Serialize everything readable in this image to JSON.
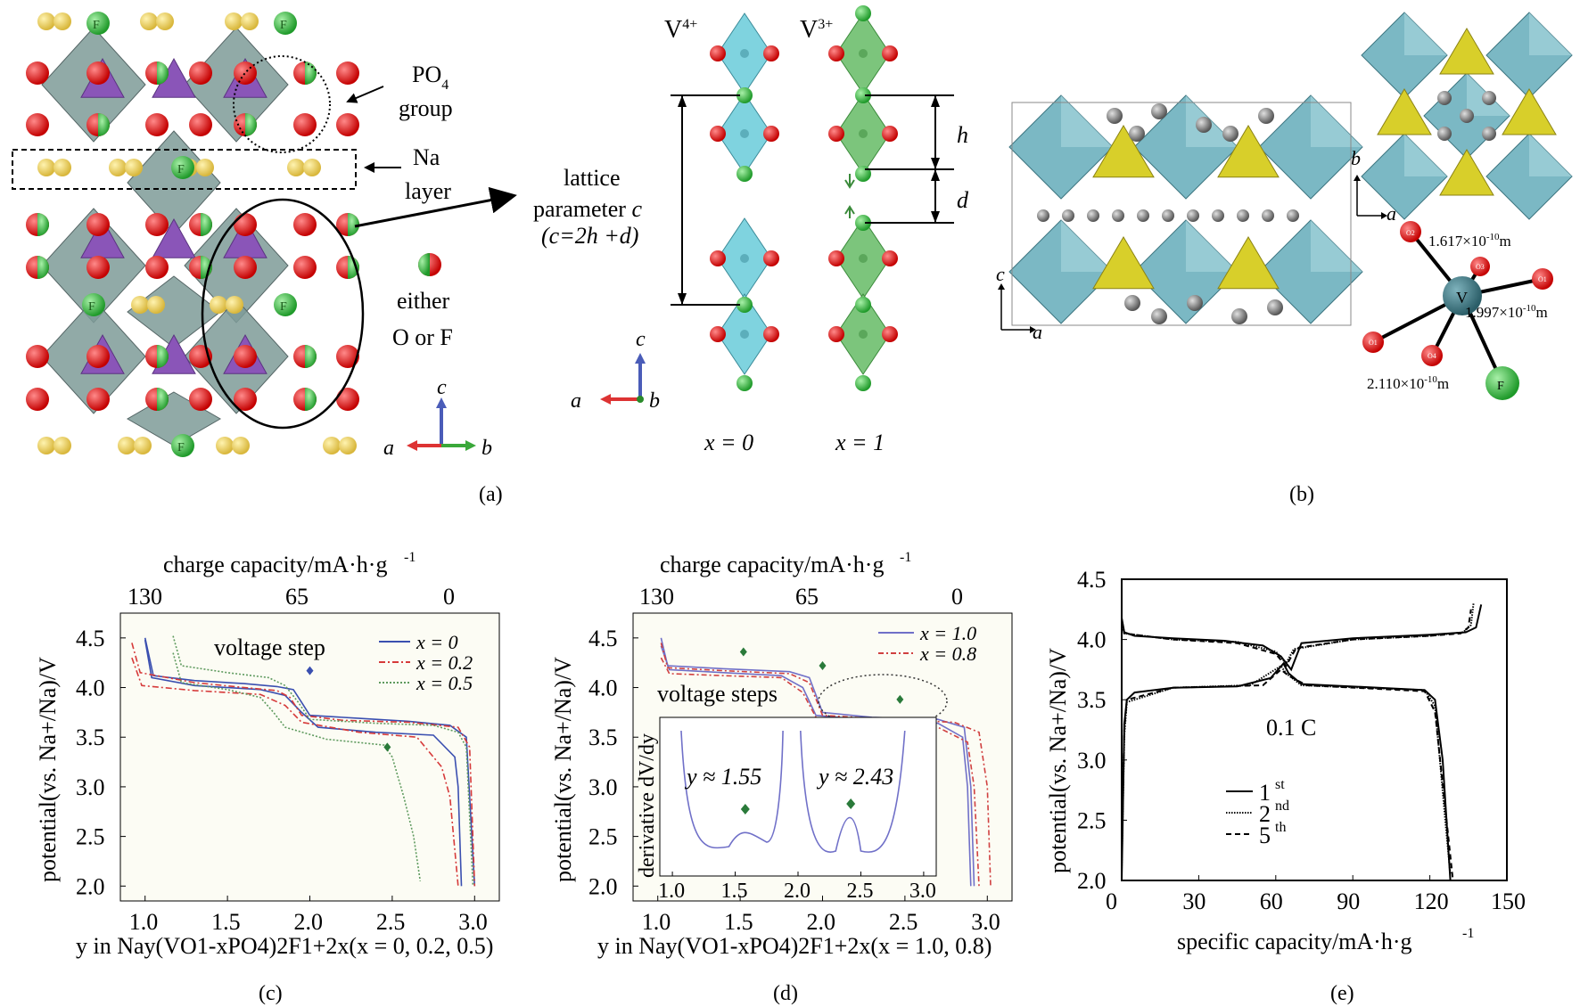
{
  "panel_a": {
    "label": "(a)",
    "po4_group": "group",
    "po4_po": "PO",
    "po4_sub": "4",
    "na_layer_1": "Na",
    "na_layer_2": "layer",
    "either": "either",
    "o_or_f": "O or F",
    "lattice_1": "lattice",
    "lattice_2_prefix": "parameter ",
    "lattice_2_var": "c",
    "lattice_3": "(c=2h +d)",
    "v4": "V",
    "v4_sup": "4+",
    "v3": "V",
    "v3_sup": "3+",
    "h": "h",
    "d": "d",
    "x0": "x = 0",
    "x1": "x = 1",
    "axis_a": "a",
    "axis_b": "b",
    "axis_c": "c",
    "atom_f": "F"
  },
  "panel_b": {
    "label": "(b)",
    "axis_a": "a",
    "axis_b": "b",
    "axis_c": "c",
    "bond1": "1.617×10",
    "bond1_exp": "-10",
    "bond1_unit": "m",
    "bond2": "1.997×10",
    "bond2_exp": "-10",
    "bond2_unit": "m",
    "bond3": "2.110×10",
    "bond3_exp": "-10",
    "bond3_unit": "m",
    "center": "V",
    "f": "F",
    "o_labels": [
      "O2",
      "O3",
      "O1",
      "O1",
      "O4"
    ]
  },
  "chart_data": [
    {
      "id": "c",
      "label": "(c)",
      "type": "line",
      "title_top": "charge capacity/mA·h·g",
      "title_top_sup": "-1",
      "top_ticks": [
        "130",
        "65",
        "0"
      ],
      "ylabel": "potential(vs. Na+/Na)/V",
      "xlabel": "y in Nay(VO1-xPO4)2F1+2x(x = 0, 0.2, 0.5)",
      "xlim": [
        0.85,
        3.15
      ],
      "ylim": [
        1.85,
        4.75
      ],
      "xticks": [
        "1.0",
        "1.5",
        "2.0",
        "2.5",
        "3.0"
      ],
      "yticks": [
        "2.0",
        "2.5",
        "3.0",
        "3.5",
        "4.0",
        "4.5"
      ],
      "annotation": "voltage step",
      "legend": [
        "x = 0",
        "x = 0.2",
        "x = 0.5"
      ],
      "series": [
        {
          "name": "x = 0 charge",
          "color": "#3a4fb0",
          "dash": "",
          "points": [
            [
              1.0,
              4.5
            ],
            [
              1.05,
              4.12
            ],
            [
              1.3,
              4.07
            ],
            [
              1.6,
              4.04
            ],
            [
              1.8,
              4.01
            ],
            [
              1.9,
              3.98
            ],
            [
              1.95,
              3.85
            ],
            [
              2.0,
              3.72
            ],
            [
              2.3,
              3.69
            ],
            [
              2.6,
              3.66
            ],
            [
              2.85,
              3.62
            ],
            [
              2.95,
              3.5
            ],
            [
              3.0,
              2.0
            ]
          ]
        },
        {
          "name": "x = 0 discharge",
          "color": "#3a4fb0",
          "dash": "",
          "points": [
            [
              1.0,
              4.48
            ],
            [
              1.04,
              4.1
            ],
            [
              1.3,
              4.02
            ],
            [
              1.7,
              3.98
            ],
            [
              1.85,
              3.92
            ],
            [
              1.95,
              3.75
            ],
            [
              2.05,
              3.6
            ],
            [
              2.4,
              3.55
            ],
            [
              2.75,
              3.52
            ],
            [
              2.88,
              3.3
            ],
            [
              2.9,
              3.0
            ],
            [
              2.92,
              2.0
            ]
          ]
        },
        {
          "name": "x = 0.2 charge",
          "color": "#d63a3a",
          "dash": "7,3,2,3",
          "points": [
            [
              0.92,
              4.45
            ],
            [
              0.97,
              4.15
            ],
            [
              1.3,
              4.05
            ],
            [
              1.6,
              4.0
            ],
            [
              1.8,
              3.97
            ],
            [
              1.88,
              3.9
            ],
            [
              1.95,
              3.72
            ],
            [
              2.2,
              3.67
            ],
            [
              2.6,
              3.65
            ],
            [
              2.9,
              3.6
            ],
            [
              2.97,
              3.4
            ],
            [
              3.0,
              2.0
            ]
          ]
        },
        {
          "name": "x = 0.2 discharge",
          "color": "#d63a3a",
          "dash": "7,3,2,3",
          "points": [
            [
              0.92,
              4.3
            ],
            [
              0.98,
              4.02
            ],
            [
              1.3,
              3.97
            ],
            [
              1.7,
              3.93
            ],
            [
              1.85,
              3.82
            ],
            [
              1.95,
              3.65
            ],
            [
              2.3,
              3.55
            ],
            [
              2.65,
              3.5
            ],
            [
              2.8,
              3.2
            ],
            [
              2.85,
              2.9
            ],
            [
              2.9,
              2.0
            ]
          ]
        },
        {
          "name": "x = 0.5 charge",
          "color": "#5e9a5e",
          "dash": "2,2",
          "points": [
            [
              1.17,
              4.52
            ],
            [
              1.22,
              4.22
            ],
            [
              1.5,
              4.15
            ],
            [
              1.75,
              4.1
            ],
            [
              1.85,
              4.02
            ],
            [
              1.93,
              3.85
            ],
            [
              2.0,
              3.68
            ],
            [
              2.4,
              3.64
            ],
            [
              2.75,
              3.62
            ],
            [
              2.9,
              3.55
            ],
            [
              2.95,
              3.4
            ],
            [
              2.99,
              2.0
            ]
          ]
        },
        {
          "name": "x = 0.5 discharge",
          "color": "#5e9a5e",
          "dash": "2,2",
          "points": [
            [
              1.17,
              4.35
            ],
            [
              1.22,
              4.05
            ],
            [
              1.5,
              3.98
            ],
            [
              1.7,
              3.9
            ],
            [
              1.78,
              3.75
            ],
            [
              1.85,
              3.6
            ],
            [
              2.1,
              3.48
            ],
            [
              2.45,
              3.42
            ],
            [
              2.5,
              3.3
            ],
            [
              2.57,
              2.9
            ],
            [
              2.63,
              2.5
            ],
            [
              2.67,
              2.05
            ]
          ]
        }
      ],
      "markers": [
        [
          2.0,
          4.17
        ],
        [
          2.47,
          3.4
        ]
      ]
    },
    {
      "id": "d",
      "label": "(d)",
      "type": "line",
      "title_top": "charge capacity/mA·h·g",
      "title_top_sup": "-1",
      "top_ticks": [
        "130",
        "65",
        "0"
      ],
      "ylabel": "potential(vs. Na+/Na)/V",
      "xlabel": "y in Nay(VO1-xPO4)2F1+2x(x = 1.0, 0.8)",
      "xlim": [
        0.85,
        3.15
      ],
      "ylim": [
        1.85,
        4.75
      ],
      "xticks": [
        "1.0",
        "1.5",
        "2.0",
        "2.5",
        "3.0"
      ],
      "yticks": [
        "2.0",
        "2.5",
        "3.0",
        "3.5",
        "4.0",
        "4.5"
      ],
      "annotation": "voltage steps",
      "legend": [
        "x = 1.0",
        "x = 0.8"
      ],
      "series": [
        {
          "name": "x = 1.0 charge",
          "color": "#7070c8",
          "dash": "",
          "points": [
            [
              1.02,
              4.5
            ],
            [
              1.06,
              4.22
            ],
            [
              1.4,
              4.19
            ],
            [
              1.8,
              4.16
            ],
            [
              1.92,
              4.1
            ],
            [
              2.0,
              3.75
            ],
            [
              2.3,
              3.7
            ],
            [
              2.7,
              3.68
            ],
            [
              2.86,
              3.6
            ],
            [
              2.9,
              3.0
            ],
            [
              2.92,
              2.0
            ]
          ]
        },
        {
          "name": "x = 1.0 discharge",
          "color": "#7070c8",
          "dash": "",
          "points": [
            [
              1.02,
              4.42
            ],
            [
              1.07,
              4.18
            ],
            [
              1.4,
              4.15
            ],
            [
              1.75,
              4.12
            ],
            [
              1.88,
              4.0
            ],
            [
              1.96,
              3.72
            ],
            [
              2.3,
              3.67
            ],
            [
              2.7,
              3.64
            ],
            [
              2.85,
              3.5
            ],
            [
              2.88,
              3.0
            ],
            [
              2.9,
              2.0
            ]
          ]
        },
        {
          "name": "x = 0.8 charge",
          "color": "#d04040",
          "dash": "6,3,2,3",
          "points": [
            [
              1.02,
              4.45
            ],
            [
              1.06,
              4.2
            ],
            [
              1.4,
              4.17
            ],
            [
              1.8,
              4.14
            ],
            [
              1.92,
              4.05
            ],
            [
              2.0,
              3.72
            ],
            [
              2.4,
              3.68
            ],
            [
              2.8,
              3.65
            ],
            [
              2.95,
              3.55
            ],
            [
              3.0,
              3.0
            ],
            [
              3.02,
              2.0
            ]
          ]
        },
        {
          "name": "x = 0.8 discharge",
          "color": "#d04040",
          "dash": "6,3,2,3",
          "points": [
            [
              1.02,
              4.3
            ],
            [
              1.07,
              4.14
            ],
            [
              1.4,
              4.12
            ],
            [
              1.75,
              4.1
            ],
            [
              1.88,
              3.95
            ],
            [
              1.96,
              3.7
            ],
            [
              2.3,
              3.64
            ],
            [
              2.7,
              3.6
            ],
            [
              2.88,
              3.45
            ],
            [
              2.92,
              3.0
            ],
            [
              2.95,
              2.0
            ]
          ]
        }
      ],
      "markers": [
        [
          1.52,
          4.36
        ],
        [
          2.0,
          4.22
        ],
        [
          2.47,
          3.88
        ]
      ],
      "inset": {
        "ylabel": "derivative dV/dy",
        "xticks": [
          "1.0",
          "1.5",
          "2.0",
          "2.5",
          "3.0"
        ],
        "annotation_left": "y ≈ 1.55",
        "annotation_right": "y ≈ 2.43"
      }
    },
    {
      "id": "e",
      "label": "(e)",
      "type": "line",
      "ylabel": "potential(vs. Na+/Na)/V",
      "xlabel": "specific capacity/mA·h·g",
      "xlabel_sup": "-1",
      "xlim": [
        0,
        150
      ],
      "ylim": [
        2.0,
        4.5
      ],
      "xticks": [
        "0",
        "30",
        "60",
        "90",
        "120",
        "150"
      ],
      "yticks": [
        "2.0",
        "2.5",
        "3.0",
        "3.5",
        "4.0",
        "4.5"
      ],
      "annotation": "0.1 C",
      "legend": [
        "1",
        "2",
        "5"
      ],
      "legend_sup": [
        "st",
        "nd",
        "th"
      ],
      "series": [
        {
          "name": "1st charge",
          "color": "#000",
          "dash": "",
          "points": [
            [
              0,
              4.18
            ],
            [
              1,
              4.06
            ],
            [
              5,
              4.03
            ],
            [
              20,
              4.01
            ],
            [
              40,
              3.99
            ],
            [
              55,
              3.95
            ],
            [
              62,
              3.86
            ],
            [
              66,
              3.75
            ],
            [
              70,
              3.97
            ],
            [
              90,
              4.01
            ],
            [
              120,
              4.04
            ],
            [
              134,
              4.06
            ],
            [
              138,
              4.1
            ],
            [
              140,
              4.29
            ]
          ]
        },
        {
          "name": "1st discharge",
          "color": "#000",
          "dash": "",
          "points": [
            [
              0,
              2.0
            ],
            [
              0.5,
              2.6
            ],
            [
              1,
              3.3
            ],
            [
              2,
              3.5
            ],
            [
              5,
              3.56
            ],
            [
              20,
              3.6
            ],
            [
              45,
              3.61
            ],
            [
              58,
              3.68
            ],
            [
              63,
              3.8
            ],
            [
              65,
              3.72
            ],
            [
              70,
              3.63
            ],
            [
              100,
              3.6
            ],
            [
              118,
              3.58
            ],
            [
              122,
              3.5
            ],
            [
              125,
              3.0
            ],
            [
              128,
              2.0
            ]
          ]
        },
        {
          "name": "2nd charge",
          "color": "#000",
          "dash": "1.5,1.5",
          "points": [
            [
              0,
              4.17
            ],
            [
              1,
              4.05
            ],
            [
              20,
              4.0
            ],
            [
              45,
              3.98
            ],
            [
              60,
              3.9
            ],
            [
              64,
              3.8
            ],
            [
              67,
              3.92
            ],
            [
              90,
              4.0
            ],
            [
              120,
              4.03
            ],
            [
              133,
              4.06
            ],
            [
              136,
              4.12
            ],
            [
              137,
              4.3
            ]
          ]
        },
        {
          "name": "2nd discharge",
          "color": "#000",
          "dash": "1.5,1.5",
          "points": [
            [
              0,
              2.1
            ],
            [
              1,
              3.2
            ],
            [
              2,
              3.48
            ],
            [
              20,
              3.6
            ],
            [
              50,
              3.62
            ],
            [
              62,
              3.78
            ],
            [
              64,
              3.72
            ],
            [
              70,
              3.62
            ],
            [
              118,
              3.58
            ],
            [
              122,
              3.45
            ],
            [
              126,
              2.5
            ],
            [
              128,
              2.05
            ]
          ]
        },
        {
          "name": "5th charge",
          "color": "#000",
          "dash": "6,4",
          "points": [
            [
              0,
              4.16
            ],
            [
              1,
              4.05
            ],
            [
              20,
              4.0
            ],
            [
              45,
              3.97
            ],
            [
              60,
              3.88
            ],
            [
              64,
              3.78
            ],
            [
              68,
              3.93
            ],
            [
              90,
              4.0
            ],
            [
              120,
              4.03
            ],
            [
              132,
              4.05
            ],
            [
              135,
              4.1
            ],
            [
              136,
              4.25
            ]
          ]
        },
        {
          "name": "5th discharge",
          "color": "#000",
          "dash": "6,4",
          "points": [
            [
              0,
              2.2
            ],
            [
              1,
              3.25
            ],
            [
              2,
              3.5
            ],
            [
              20,
              3.6
            ],
            [
              55,
              3.62
            ],
            [
              62,
              3.75
            ],
            [
              65,
              3.7
            ],
            [
              72,
              3.62
            ],
            [
              118,
              3.57
            ],
            [
              122,
              3.4
            ],
            [
              126,
              2.6
            ],
            [
              129,
              2.0
            ]
          ]
        }
      ]
    }
  ]
}
